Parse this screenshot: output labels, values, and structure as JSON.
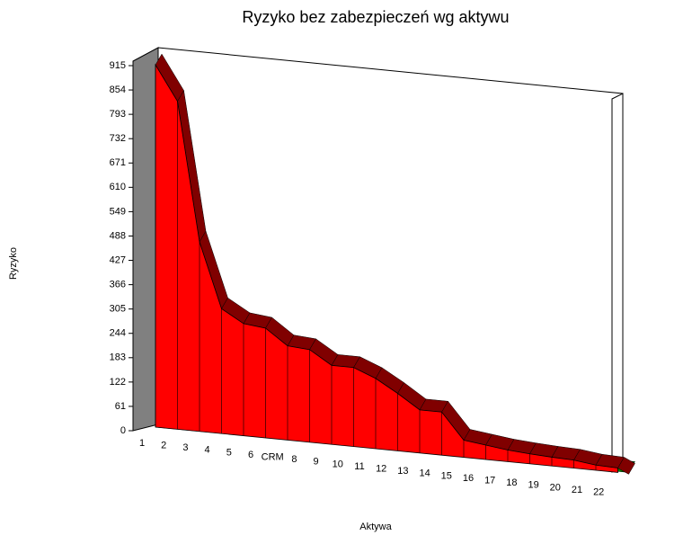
{
  "chart_data": {
    "type": "area",
    "title": "Ryzyko bez zabezpieczeń wg aktywu",
    "x_label": "Aktywa",
    "y_label": "Ryzyko",
    "categories": [
      "1",
      "2",
      "3",
      "4",
      "5",
      "6",
      "CRM",
      "8",
      "9",
      "10",
      "11",
      "12",
      "13",
      "14",
      "15",
      "16",
      "17",
      "18",
      "19",
      "20",
      "21",
      "22"
    ],
    "values": [
      908,
      822,
      475,
      313,
      281,
      275,
      236,
      232,
      198,
      198,
      176,
      144,
      108,
      108,
      43,
      36,
      29,
      25,
      22,
      20,
      13,
      11
    ],
    "color": "#ff0000",
    "ylim": [
      0,
      915
    ],
    "yticks": [
      0,
      61,
      122,
      183,
      244,
      305,
      366,
      427,
      488,
      549,
      610,
      671,
      732,
      793,
      854,
      915
    ]
  }
}
